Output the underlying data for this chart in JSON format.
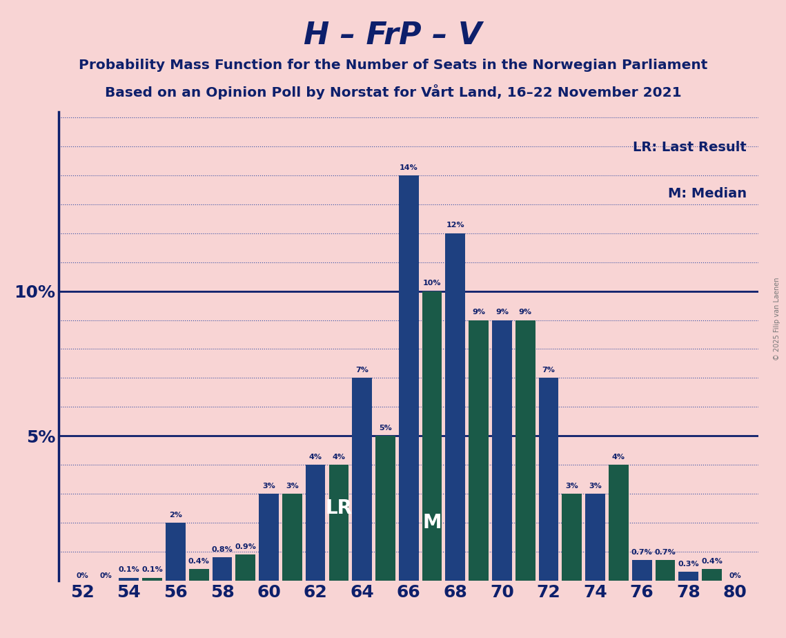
{
  "title": "H – FrP – V",
  "subtitle1": "Probability Mass Function for the Number of Seats in the Norwegian Parliament",
  "subtitle2": "Based on an Opinion Poll by Norstat for Vårt Land, 16–22 November 2021",
  "copyright": "© 2025 Filip van Laenen",
  "lr_label": "LR: Last Result",
  "m_label": "M: Median",
  "lr_annotation": "LR",
  "m_annotation": "M",
  "background_color": "#f8d4d4",
  "bar_color_blue": "#1e4080",
  "bar_color_green": "#1a5a48",
  "title_color": "#0d1f6b",
  "xlim_min": 51.0,
  "xlim_max": 81.0,
  "ylim_min": 0,
  "ylim_max": 16.2,
  "seats": [
    52,
    53,
    54,
    55,
    56,
    57,
    58,
    59,
    60,
    61,
    62,
    63,
    64,
    65,
    66,
    67,
    68,
    69,
    70,
    71,
    72,
    73,
    74,
    75,
    76,
    77,
    78,
    79,
    80
  ],
  "values": [
    0.0,
    0.0,
    0.1,
    0.1,
    2.0,
    0.4,
    0.8,
    0.9,
    3.0,
    3.0,
    4.0,
    4.0,
    7.0,
    5.0,
    14.0,
    10.0,
    12.0,
    9.0,
    9.0,
    9.0,
    7.0,
    3.0,
    3.0,
    4.0,
    0.7,
    0.7,
    0.3,
    0.4,
    0.0
  ],
  "colors": [
    "blue",
    "blue",
    "blue",
    "green",
    "blue",
    "green",
    "blue",
    "green",
    "blue",
    "green",
    "blue",
    "green",
    "blue",
    "green",
    "blue",
    "green",
    "blue",
    "green",
    "blue",
    "green",
    "blue",
    "green",
    "blue",
    "green",
    "blue",
    "green",
    "blue",
    "green",
    "blue"
  ],
  "percent_labels": [
    "0%",
    "0%",
    "0.1%",
    "0.1%",
    "2%",
    "0.4%",
    "0.8%",
    "0.9%",
    "3%",
    "3%",
    "4%",
    "4%",
    "7%",
    "5%",
    "14%",
    "10%",
    "12%",
    "9%",
    "9%",
    "9%",
    "7%",
    "3%",
    "3%",
    "4%",
    "0.7%",
    "0.7%",
    "0.3%",
    "0.4%",
    "0%"
  ],
  "xtick_positions": [
    52,
    54,
    56,
    58,
    60,
    62,
    64,
    66,
    68,
    70,
    72,
    74,
    76,
    78,
    80
  ],
  "ytick_positions": [
    0,
    5,
    10
  ],
  "ytick_labels": [
    "",
    "5%",
    "10%"
  ],
  "lr_seat": 63,
  "m_seat": 67,
  "bar_width": 0.85
}
